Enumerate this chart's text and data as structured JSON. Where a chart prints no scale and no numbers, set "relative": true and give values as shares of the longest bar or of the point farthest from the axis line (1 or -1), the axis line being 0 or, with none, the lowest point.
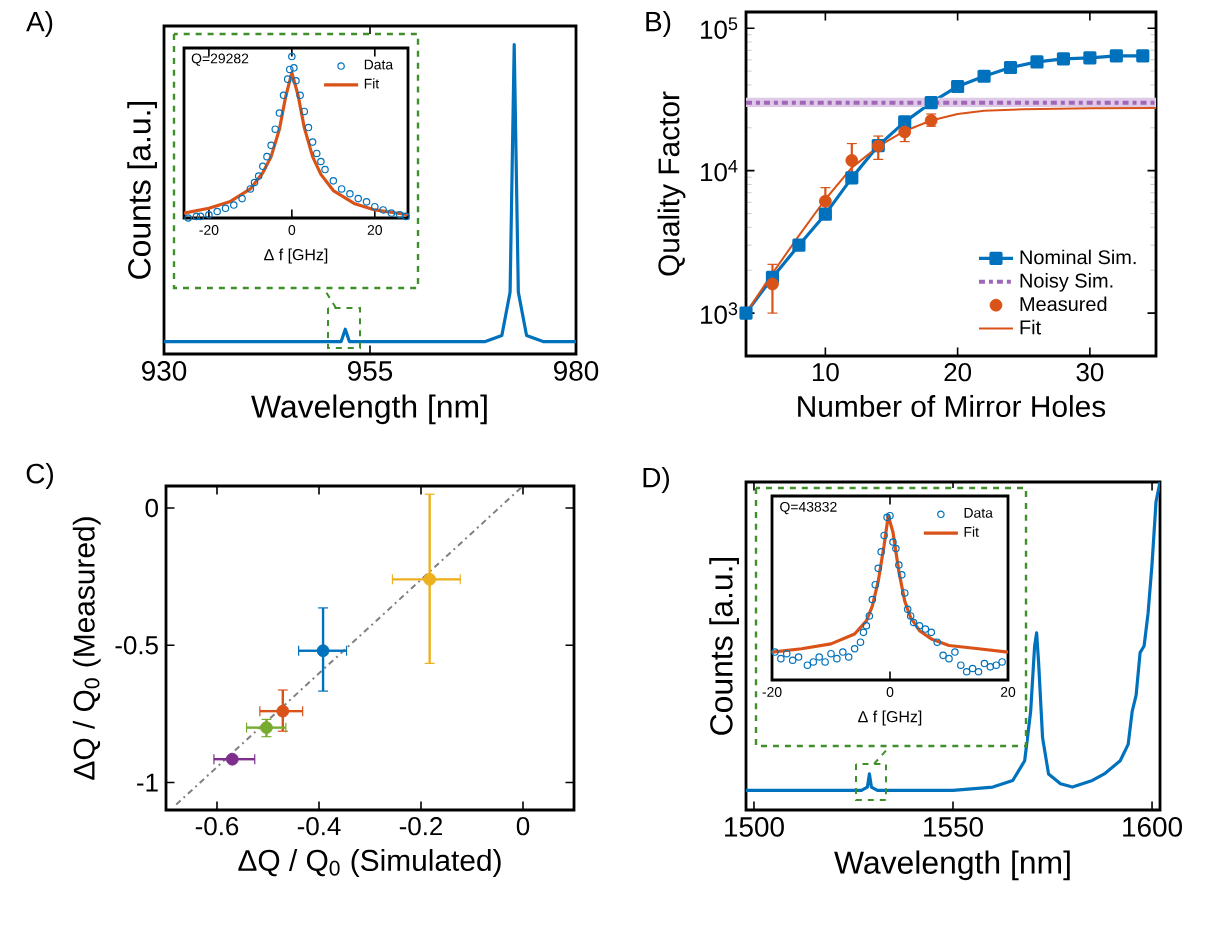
{
  "chart_data": [
    {
      "type": "line",
      "annotations": [
        "A)"
      ],
      "xlabel": "Wavelength [nm]",
      "ylabel": "Counts [a.u.]",
      "xlim": [
        930,
        980
      ],
      "xticks": [
        930,
        955,
        980
      ],
      "relative": true,
      "tick_labels": "x",
      "series": [
        {
          "color": "#0072bd",
          "x": [
            930,
            935,
            940,
            945,
            950,
            951.5,
            952,
            952.5,
            955,
            960,
            965,
            969,
            971,
            972,
            972.5,
            973,
            974,
            976,
            980
          ],
          "values": [
            0.04,
            0.04,
            0.04,
            0.04,
            0.04,
            0.04,
            0.08,
            0.04,
            0.04,
            0.04,
            0.04,
            0.04,
            0.06,
            0.2,
            1.0,
            0.2,
            0.06,
            0.04,
            0.04
          ]
        }
      ]
    },
    {
      "type": "line",
      "annotations": [
        "Q=29282"
      ],
      "xlabel": "Δ f [GHz]",
      "xlim": [
        -26,
        28
      ],
      "xticks": [
        -20,
        0,
        20
      ],
      "relative": true,
      "tick_labels": "x",
      "legend": "top right",
      "series": [
        {
          "name": "Data",
          "type": "scatter",
          "marker": "circle",
          "color": "#0072bd",
          "x": [
            -25,
            -23,
            -22,
            -20,
            -18,
            -16,
            -14,
            -12,
            -10,
            -9,
            -8,
            -7,
            -6,
            -5,
            -4,
            -3,
            -2,
            -1,
            -0.5,
            0,
            0.5,
            1,
            2,
            3,
            4,
            5,
            6,
            7,
            8,
            10,
            12,
            14,
            16,
            18,
            20,
            22,
            24,
            26,
            27.5
          ],
          "values": [
            0.0,
            0.01,
            0.01,
            0.02,
            0.04,
            0.06,
            0.08,
            0.12,
            0.18,
            0.22,
            0.26,
            0.32,
            0.38,
            0.45,
            0.55,
            0.65,
            0.76,
            0.86,
            0.92,
            1.0,
            0.93,
            0.85,
            0.76,
            0.66,
            0.56,
            0.47,
            0.4,
            0.35,
            0.3,
            0.23,
            0.18,
            0.15,
            0.12,
            0.1,
            0.07,
            0.05,
            0.03,
            0.02,
            0.01
          ]
        },
        {
          "name": "Fit",
          "color": "#d95319",
          "x": [
            -26,
            -20,
            -15,
            -10,
            -7,
            -5,
            -3,
            -1.5,
            0,
            1.5,
            3,
            5,
            7,
            10,
            15,
            20,
            28
          ],
          "values": [
            0.03,
            0.06,
            0.1,
            0.18,
            0.28,
            0.38,
            0.55,
            0.75,
            0.9,
            0.76,
            0.56,
            0.38,
            0.27,
            0.17,
            0.09,
            0.05,
            0.02
          ]
        }
      ]
    },
    {
      "type": "line",
      "annotations": [
        "B)"
      ],
      "xlabel": "Number of Mirror Holes",
      "ylabel": "Quality Factor",
      "log": "y",
      "xlim": [
        4,
        35
      ],
      "ylim": [
        500,
        130000
      ],
      "xticks": [
        10,
        20,
        30
      ],
      "yticks": [
        {
          "value": 1000,
          "label": "10$^{3}$"
        },
        {
          "value": 10000,
          "label": "10$^{4}$"
        },
        {
          "value": 100000,
          "label": "10$^{5}$"
        }
      ],
      "legend": "bottom right",
      "series": [
        {
          "name": "Nominal Sim.",
          "color": "#0072bd",
          "marker": "square",
          "x": [
            4,
            6,
            8,
            10,
            12,
            14,
            16,
            18,
            20,
            22,
            24,
            26,
            28,
            30,
            32,
            34
          ],
          "values": [
            1000,
            1780,
            3000,
            4950,
            8900,
            15000,
            22000,
            30000,
            39000,
            46000,
            53000,
            58000,
            61000,
            62000,
            64000,
            64000
          ]
        },
        {
          "name": "Noisy Sim.",
          "color": "#a066b8",
          "line_style": "dashed",
          "x": [
            4,
            35
          ],
          "values": [
            30000,
            30000
          ],
          "lower": [
            28000,
            28000
          ],
          "upper": [
            32500,
            32500
          ]
        },
        {
          "name": "Measured",
          "type": "scatter",
          "marker": "circle",
          "color": "#d95319",
          "x": [
            6,
            10,
            12,
            14,
            16,
            18
          ],
          "values": [
            1600,
            6100,
            11800,
            14900,
            18700,
            22500
          ],
          "errors": [
            [
              1000,
              2200
            ],
            [
              5000,
              7600
            ],
            [
              9000,
              15500
            ],
            [
              12000,
              17500
            ],
            [
              16000,
              21500
            ],
            [
              20500,
              25000
            ]
          ]
        },
        {
          "name": "Fit",
          "color": "#d95319",
          "x": [
            4,
            6,
            8,
            10,
            12,
            14,
            16,
            18,
            20,
            22,
            25,
            30,
            35
          ],
          "values": [
            1000,
            1900,
            3500,
            6300,
            10500,
            14800,
            19000,
            22500,
            25000,
            26300,
            27000,
            27400,
            27500
          ]
        }
      ]
    },
    {
      "type": "scatter",
      "annotations": [
        "C)"
      ],
      "xlabel": "ΔQ / Q$_{0}$ (Simulated)",
      "ylabel": "ΔQ / Q$_{0}$ (Measured)",
      "xlim": [
        -0.7,
        0.1
      ],
      "ylim": [
        -1.1,
        0.08
      ],
      "xticks": [
        -0.6,
        -0.4,
        -0.2,
        0
      ],
      "yticks": [
        -1,
        -0.5,
        0
      ],
      "series": [
        {
          "type": "line",
          "color": "#808080",
          "line_style": "dashed",
          "x": [
            -0.68,
            0
          ],
          "values": [
            -1.08,
            0.08
          ]
        },
        {
          "marker": "circle",
          "x": [
            -0.183,
            -0.392,
            -0.471,
            -0.503,
            -0.57
          ],
          "values": [
            -0.26,
            -0.52,
            -0.74,
            -0.8,
            -0.915
          ],
          "colors": [
            "#edb120",
            "#0072bd",
            "#d95319",
            "#77ac30",
            "#7e2f8e"
          ],
          "errors": [
            [
              -0.566,
              0.05
            ],
            [
              -0.667,
              -0.364
            ],
            [
              -0.813,
              -0.663
            ],
            [
              -0.833,
              -0.77
            ],
            null
          ],
          "xerrors": [
            [
              -0.256,
              -0.123
            ],
            [
              -0.44,
              -0.346
            ],
            [
              -0.516,
              -0.432
            ],
            [
              -0.542,
              -0.465
            ],
            [
              -0.606,
              -0.526
            ]
          ]
        }
      ]
    },
    {
      "type": "line",
      "annotations": [
        "D)"
      ],
      "xlabel": "Wavelength [nm]",
      "ylabel": "Counts [a.u.]",
      "xlim": [
        1498,
        1602
      ],
      "xticks": [
        1500,
        1550,
        1600
      ],
      "relative": true,
      "tick_labels": "x",
      "series": [
        {
          "color": "#0072bd",
          "x": [
            1498,
            1510,
            1520,
            1527,
            1528.5,
            1529,
            1529.5,
            1531,
            1540,
            1550,
            1560,
            1565,
            1568,
            1569.5,
            1570.5,
            1571,
            1571.5,
            1572.5,
            1574,
            1577,
            1580,
            1585,
            1588,
            1590,
            1592,
            1594,
            1595,
            1596,
            1597,
            1598,
            1599,
            1600,
            1601,
            1602
          ],
          "values": [
            0.06,
            0.06,
            0.06,
            0.06,
            0.07,
            0.11,
            0.07,
            0.06,
            0.06,
            0.06,
            0.07,
            0.09,
            0.15,
            0.3,
            0.5,
            0.54,
            0.45,
            0.22,
            0.11,
            0.08,
            0.07,
            0.09,
            0.11,
            0.13,
            0.15,
            0.2,
            0.3,
            0.35,
            0.48,
            0.5,
            0.6,
            0.75,
            0.94,
            1.0
          ]
        }
      ]
    },
    {
      "type": "line",
      "annotations": [
        "Q=43832"
      ],
      "xlabel": "Δ f [GHz]",
      "xlim": [
        -20,
        20
      ],
      "xticks": [
        -20,
        0,
        20
      ],
      "relative": true,
      "tick_labels": "x",
      "legend": "top right",
      "series": [
        {
          "name": "Data",
          "type": "scatter",
          "marker": "circle",
          "color": "#0072bd",
          "x": [
            -19.5,
            -18.5,
            -17.5,
            -16.5,
            -15.5,
            -14,
            -13,
            -12,
            -11,
            -10,
            -9,
            -8,
            -7,
            -6,
            -5,
            -4.5,
            -4,
            -3.5,
            -3,
            -2.5,
            -2,
            -1.5,
            -1,
            -0.5,
            0,
            0.5,
            1,
            1.5,
            2,
            2.5,
            3,
            3.5,
            4,
            5,
            6,
            7,
            8,
            9,
            10,
            11,
            12,
            13,
            14,
            15,
            16,
            17,
            18,
            19
          ],
          "values": [
            0.17,
            0.13,
            0.16,
            0.12,
            0.14,
            0.09,
            0.11,
            0.14,
            0.11,
            0.16,
            0.13,
            0.17,
            0.14,
            0.19,
            0.23,
            0.29,
            0.33,
            0.39,
            0.49,
            0.58,
            0.68,
            0.78,
            0.88,
            0.99,
            1.0,
            0.84,
            0.8,
            0.7,
            0.64,
            0.53,
            0.43,
            0.39,
            0.35,
            0.33,
            0.31,
            0.29,
            0.23,
            0.15,
            0.13,
            0.17,
            0.09,
            0.05,
            0.07,
            0.05,
            0.1,
            0.08,
            0.09,
            0.11
          ]
        },
        {
          "name": "Fit",
          "color": "#d95319",
          "x": [
            -20,
            -15,
            -10,
            -6,
            -4,
            -3,
            -2,
            -1,
            -0.3,
            0.5,
            1.5,
            2.5,
            3.5,
            5,
            7,
            10,
            15,
            20
          ],
          "values": [
            0.17,
            0.19,
            0.22,
            0.28,
            0.36,
            0.45,
            0.6,
            0.82,
            1.0,
            0.9,
            0.66,
            0.48,
            0.38,
            0.3,
            0.25,
            0.21,
            0.19,
            0.17
          ]
        }
      ]
    }
  ]
}
